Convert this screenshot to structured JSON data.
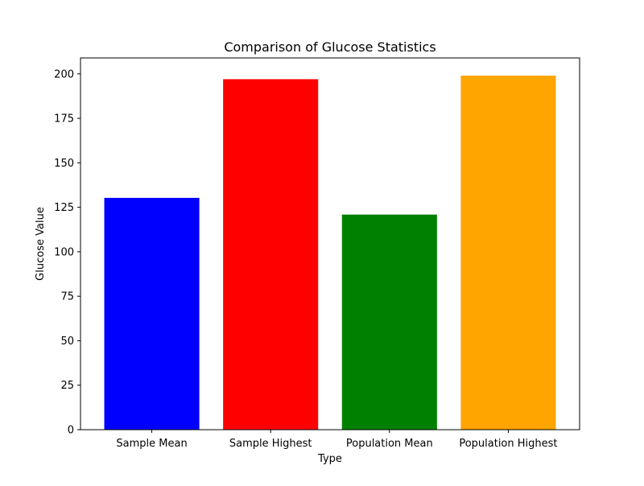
{
  "chart_data": {
    "type": "bar",
    "title": "Comparison of Glucose Statistics",
    "xlabel": "Type",
    "ylabel": "Glucose Value",
    "categories": [
      "Sample Mean",
      "Sample Highest",
      "Population Mean",
      "Population Highest"
    ],
    "values": [
      130.3,
      197,
      120.9,
      199
    ],
    "colors": [
      "#0000ff",
      "#ff0000",
      "#008000",
      "#ffa500"
    ],
    "ylim": [
      0,
      208.95
    ],
    "yticks": [
      0,
      25,
      50,
      75,
      100,
      125,
      150,
      175,
      200
    ],
    "grid": false,
    "legend": "none"
  }
}
